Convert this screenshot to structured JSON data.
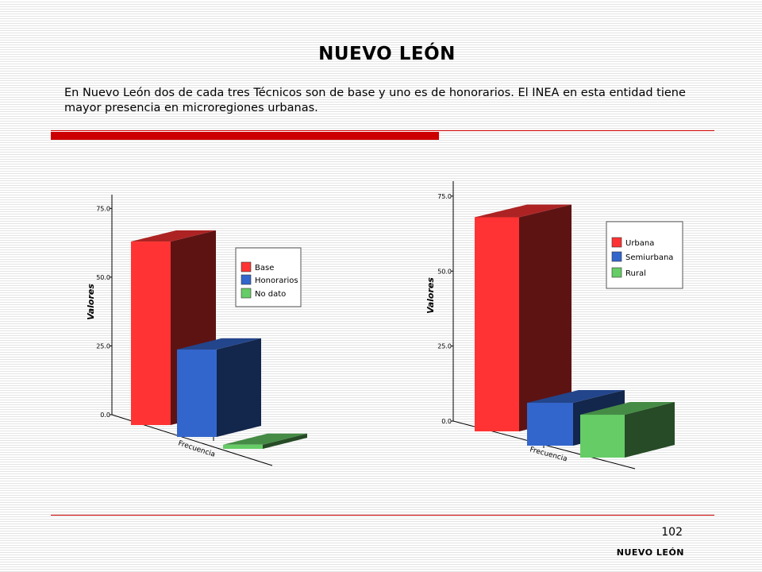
{
  "page": {
    "title": "NUEVO LEÓN",
    "intro": "En Nuevo León dos de cada tres Técnicos son de base y uno es de honorarios. El INEA en esta entidad tiene mayor presencia en microregiones urbanas.",
    "page_number": "102",
    "footer": "NUEVO LEÓN",
    "accent_color": "#cc0000"
  },
  "chart_data": [
    {
      "type": "bar",
      "ylabel": "Valores",
      "ylim": [
        0,
        80
      ],
      "yticks": [
        "0.0",
        "25.0",
        "50.0",
        "75.0"
      ],
      "ytick_values": [
        0,
        25,
        50,
        75
      ],
      "categories": [
        "Frecuencia"
      ],
      "legend_position": "right",
      "series": [
        {
          "name": "Base",
          "values": [
            66.7
          ],
          "color": "#ff3333"
        },
        {
          "name": "Honorarios",
          "values": [
            31.8
          ],
          "color": "#3366cc"
        },
        {
          "name": "No dato",
          "values": [
            1.5
          ],
          "color": "#66cc66"
        }
      ]
    },
    {
      "type": "bar",
      "ylabel": "Valores",
      "ylim": [
        0,
        80
      ],
      "yticks": [
        "0.0",
        "25.0",
        "50.0",
        "75.0"
      ],
      "ytick_values": [
        0,
        25,
        50,
        75
      ],
      "categories": [
        "Frecuencia"
      ],
      "legend_position": "right",
      "series": [
        {
          "name": "Urbana",
          "values": [
            71.4
          ],
          "color": "#ff3333"
        },
        {
          "name": "Semiurbana",
          "values": [
            14.3
          ],
          "color": "#3366cc"
        },
        {
          "name": "Rural",
          "values": [
            14.3
          ],
          "color": "#66cc66"
        }
      ]
    }
  ]
}
